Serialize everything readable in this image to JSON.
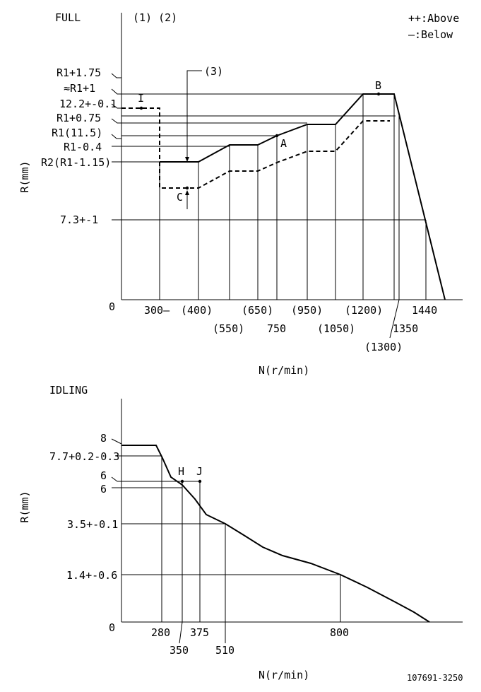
{
  "full": {
    "title": "FULL",
    "notes": "(1) (2)",
    "legend": {
      "above": "++:Above",
      "below": "—:Below"
    },
    "ylabel": "R(mm)",
    "xlabel": "N(r/min)",
    "zero": "0",
    "y_labels": [
      "R1+1.75",
      "≈R1+1",
      "12.2+-0.1",
      "R1+0.75",
      "R1(11.5)",
      "R1-0.4",
      "R2(R1-1.15)",
      "7.3+-1"
    ],
    "x_labels": [
      "300—",
      "(400)",
      "(550)",
      "(650)",
      "750",
      "(950)",
      "(1050)",
      "(1200)",
      "(1300)",
      "1350",
      "1440"
    ],
    "point_labels": {
      "callout3": "(3)",
      "I": "I",
      "A": "A",
      "B": "B",
      "C": "C"
    }
  },
  "idling": {
    "title": "IDLING",
    "ylabel": "R(mm)",
    "xlabel": "N(r/min)",
    "zero": "0",
    "y_labels": [
      "8",
      "7.7+0.2-0.3",
      "6",
      "6",
      "3.5+-0.1",
      "1.4+-0.6"
    ],
    "x_labels": [
      "280",
      "350",
      "375",
      "510",
      "800"
    ],
    "point_labels": {
      "H": "H",
      "J": "J"
    }
  },
  "footer": {
    "code": "107691-3250"
  }
}
